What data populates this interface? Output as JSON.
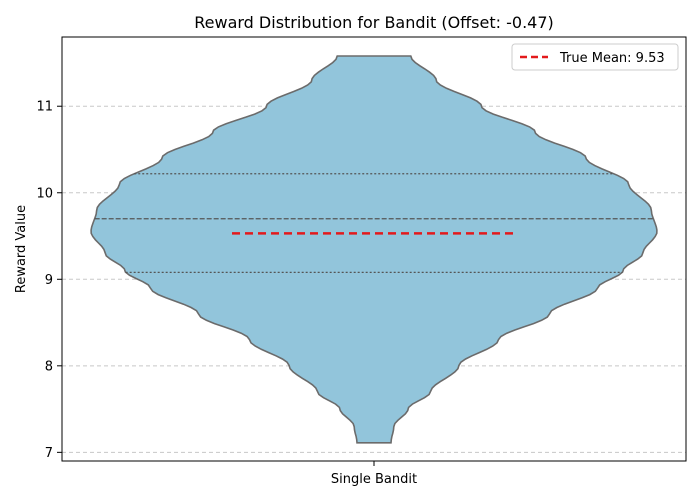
{
  "chart_data": {
    "type": "violin",
    "title": "Reward Distribution for Bandit (Offset: -0.47)",
    "xlabel": "",
    "ylabel": "Reward Value",
    "categories": [
      "Single Bandit"
    ],
    "ylim": [
      6.9,
      11.8
    ],
    "yticks": [
      7,
      8,
      9,
      10,
      11
    ],
    "grid": "y-dashed",
    "legend": {
      "position": "top-right",
      "entries": [
        "True Mean: 9.53"
      ]
    },
    "violin": {
      "fill_color": "#92C5DB",
      "edge_color": "#6b6b6b",
      "min": 7.11,
      "max": 11.58,
      "quartiles": {
        "q1": 9.08,
        "median": 9.7,
        "q3": 10.22
      },
      "density_profile": [
        {
          "y": 7.11,
          "w": 0.06
        },
        {
          "y": 7.3,
          "w": 0.07
        },
        {
          "y": 7.5,
          "w": 0.12
        },
        {
          "y": 7.7,
          "w": 0.2
        },
        {
          "y": 8.0,
          "w": 0.3
        },
        {
          "y": 8.3,
          "w": 0.44
        },
        {
          "y": 8.6,
          "w": 0.62
        },
        {
          "y": 8.9,
          "w": 0.79
        },
        {
          "y": 9.1,
          "w": 0.88
        },
        {
          "y": 9.3,
          "w": 0.95
        },
        {
          "y": 9.55,
          "w": 1.0
        },
        {
          "y": 9.8,
          "w": 0.98
        },
        {
          "y": 10.1,
          "w": 0.9
        },
        {
          "y": 10.4,
          "w": 0.75
        },
        {
          "y": 10.7,
          "w": 0.57
        },
        {
          "y": 11.0,
          "w": 0.38
        },
        {
          "y": 11.3,
          "w": 0.22
        },
        {
          "y": 11.58,
          "w": 0.13
        }
      ]
    },
    "true_mean": {
      "value": 9.53,
      "label": "True Mean: 9.53",
      "color": "#e31a1c"
    }
  }
}
